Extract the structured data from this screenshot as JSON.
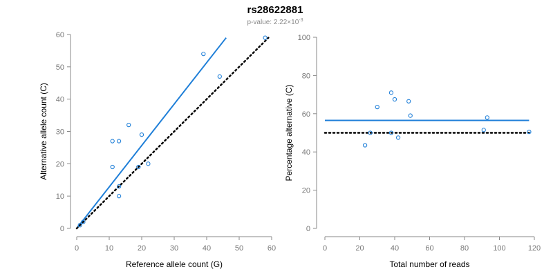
{
  "title": "rs28622881",
  "subtitle": {
    "prefix": "p-value: 2.22×10",
    "exponent": "-3"
  },
  "colors": {
    "fit": "#1f7fd8",
    "points": "#1f7fd8",
    "reference": "#000000",
    "axis": "#888888"
  },
  "chart_data": [
    {
      "type": "scatter",
      "xlabel": "Reference allele count (G)",
      "ylabel": "Alternative allele count (C)",
      "xlim": [
        0,
        60
      ],
      "ylim": [
        0,
        60
      ],
      "xticks": [
        0,
        10,
        20,
        30,
        40,
        50,
        60
      ],
      "yticks": [
        0,
        10,
        20,
        30,
        40,
        50,
        60
      ],
      "series": [
        {
          "kind": "points",
          "x": [
            1,
            2,
            11,
            11,
            13,
            13,
            13,
            16,
            19,
            20,
            22,
            39,
            44,
            58
          ],
          "y": [
            1,
            2,
            27,
            19,
            27,
            10,
            13,
            32,
            19,
            29,
            20,
            54,
            47,
            59
          ]
        },
        {
          "kind": "fit-line",
          "x": [
            0,
            46
          ],
          "y": [
            0,
            59
          ]
        },
        {
          "kind": "reference-line",
          "style": "dotted",
          "x": [
            0,
            59
          ],
          "y": [
            0,
            59
          ]
        }
      ]
    },
    {
      "type": "scatter",
      "xlabel": "Total number of reads",
      "ylabel": "Percentage alternative (C)",
      "xlim": [
        0,
        120
      ],
      "ylim": [
        0,
        100
      ],
      "xticks": [
        0,
        20,
        40,
        60,
        80,
        100,
        120
      ],
      "yticks": [
        0,
        20,
        40,
        60,
        80,
        100
      ],
      "series": [
        {
          "kind": "points",
          "x": [
            23,
            26,
            30,
            38,
            38,
            40,
            42,
            48,
            49,
            91,
            93,
            117
          ],
          "y": [
            43.5,
            50,
            63.5,
            71,
            50,
            67.5,
            47.5,
            66.5,
            59,
            51.5,
            58,
            50.5
          ]
        },
        {
          "kind": "fit-line",
          "x": [
            0,
            117
          ],
          "y": [
            56.5,
            56.5
          ]
        },
        {
          "kind": "reference-line",
          "style": "dotted",
          "x": [
            0,
            117
          ],
          "y": [
            50,
            50
          ]
        }
      ]
    }
  ]
}
